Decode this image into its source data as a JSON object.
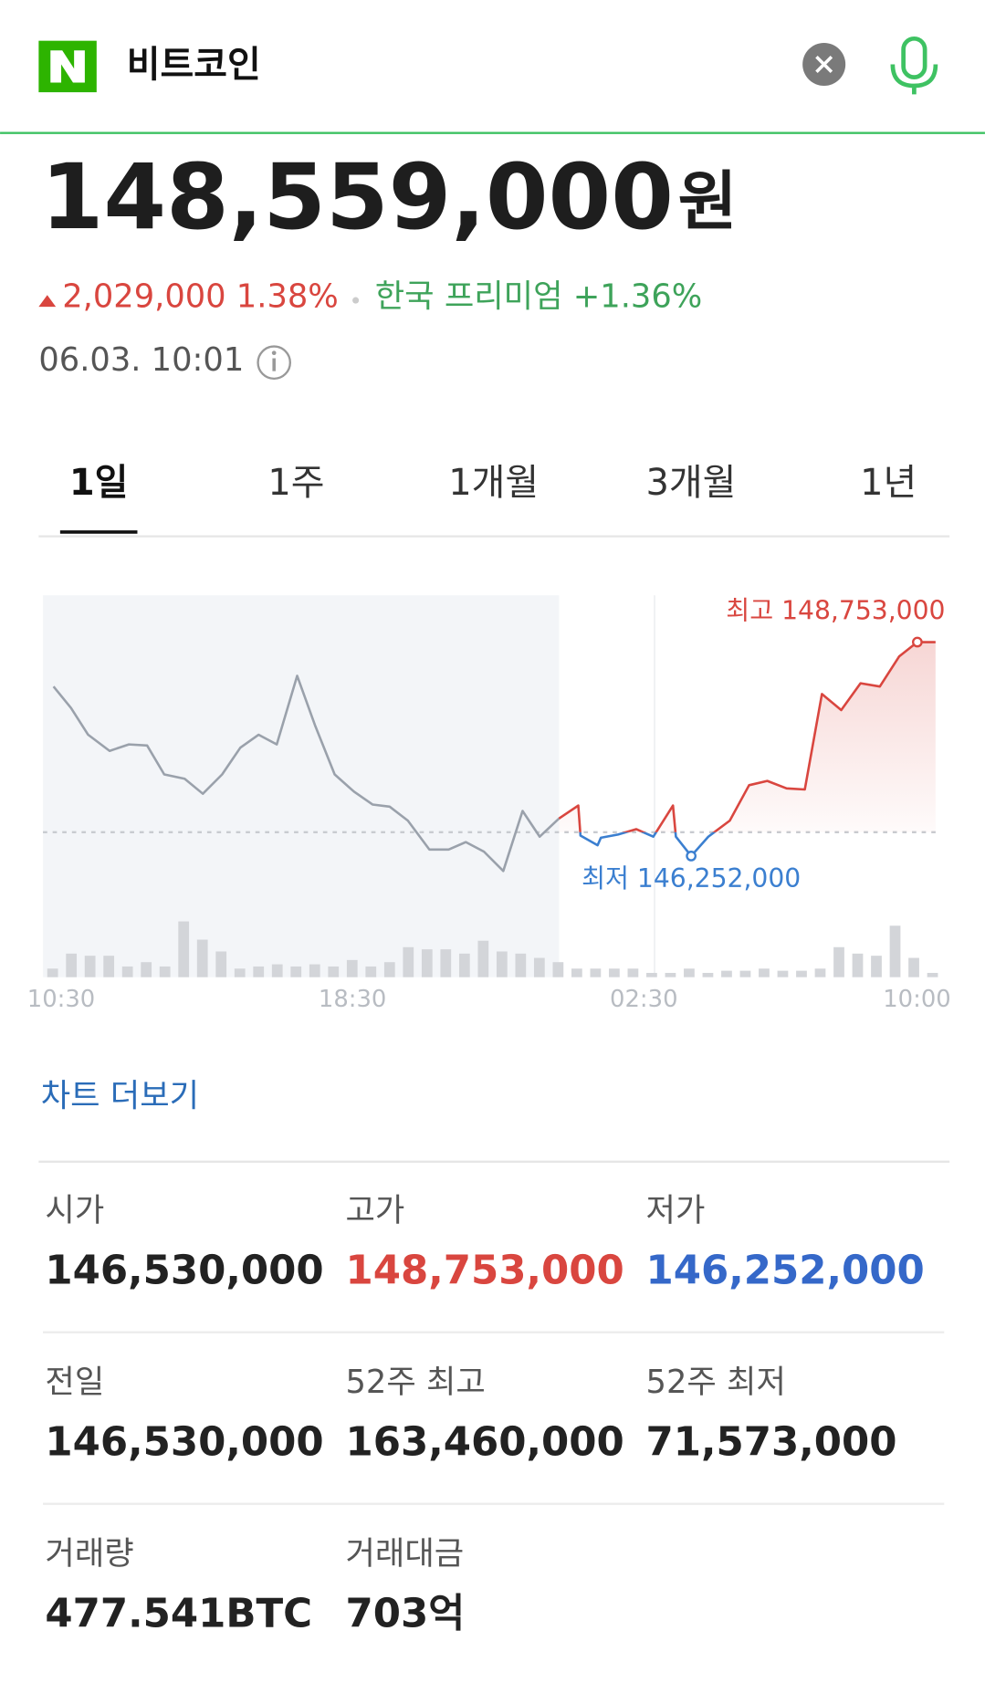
{
  "header": {
    "query": "비트코인"
  },
  "quote": {
    "price": "148,559,000",
    "unit": "원",
    "change": "2,029,000 1.38%",
    "premium": "한국 프리미엄 +1.36%",
    "time": "06.03. 10:01"
  },
  "tabs": [
    "1일",
    "1주",
    "1개월",
    "3개월",
    "1년"
  ],
  "chart_data": {
    "type": "line",
    "xlim": [
      0,
      24.6
    ],
    "ylim": [
      145500000,
      149300000
    ],
    "xticks": [
      {
        "value": 0.5,
        "label": "10:30"
      },
      {
        "value": 8.5,
        "label": "18:30"
      },
      {
        "value": 16.5,
        "label": "02:30"
      },
      {
        "value": 24,
        "label": "10:00"
      }
    ],
    "reference_line": 146530000,
    "series": [
      {
        "color": "#9aa1ab",
        "x": [
          0.29,
          0.77,
          1.24,
          1.83,
          2.36,
          2.86,
          3.33,
          3.89,
          4.39,
          4.92,
          5.42,
          5.92,
          6.42,
          6.98,
          7.48,
          8.01,
          8.54,
          9.05,
          9.52,
          10.02,
          10.61,
          11.14,
          11.61,
          12.11,
          12.64,
          13.17,
          13.64,
          14.17
        ],
        "values": [
          148234000,
          147983000,
          147670000,
          147481000,
          147557000,
          147544000,
          147206000,
          147155000,
          146980000,
          147206000,
          147519000,
          147670000,
          147557000,
          148359000,
          147770000,
          147206000,
          147005000,
          146854000,
          146829000,
          146666000,
          146328000,
          146328000,
          146415000,
          146303000,
          146077000,
          146779000,
          146478000,
          146691000
        ]
      },
      {
        "color": "#d9463f",
        "below_color": "#3b7fd0",
        "x": [
          14.17,
          14.7,
          14.76,
          15.23,
          15.32,
          15.79,
          16.29,
          16.76,
          17.3,
          17.38,
          17.8,
          18.27,
          18.86,
          19.39,
          19.89,
          20.42,
          20.92,
          21.39,
          21.92,
          22.45,
          22.98,
          23.51,
          24.01,
          24.51
        ],
        "values": [
          146691000,
          146842000,
          146491000,
          146378000,
          146466000,
          146503000,
          146566000,
          146478000,
          146842000,
          146478000,
          146252000,
          146478000,
          146666000,
          147080000,
          147130000,
          147043000,
          147030000,
          148146000,
          147958000,
          148272000,
          148234000,
          148585000,
          148753000,
          148753000
        ]
      }
    ],
    "annotations": [
      {
        "text": "최고 148,753,000",
        "x": 24.01,
        "y": 148753000,
        "color": "#d9463f"
      },
      {
        "text": "최저 146,252,000",
        "x": 17.8,
        "y": 146252000,
        "color": "#3b7fd0"
      }
    ],
    "volume": {
      "color": "#d3d5d9",
      "ylim": [
        0,
        60
      ],
      "values": [
        8,
        22,
        20,
        20,
        10,
        14,
        10,
        52,
        35,
        24,
        8,
        10,
        12,
        10,
        12,
        10,
        16,
        10,
        14,
        28,
        26,
        26,
        22,
        34,
        24,
        22,
        18,
        14,
        8,
        8,
        8,
        8,
        4,
        4,
        8,
        4,
        6,
        6,
        8,
        6,
        6,
        8,
        28,
        22,
        20,
        48,
        18,
        4
      ]
    }
  },
  "more_link": "차트 더보기",
  "stats": [
    {
      "label": "시가",
      "value": "146,530,000",
      "color": "#222222"
    },
    {
      "label": "고가",
      "value": "148,753,000",
      "color": "#d9463f"
    },
    {
      "label": "저가",
      "value": "146,252,000",
      "color": "#3568c9"
    },
    {
      "label": "전일",
      "value": "146,530,000",
      "color": "#222222"
    },
    {
      "label": "52주 최고",
      "value": "163,460,000",
      "color": "#222222"
    },
    {
      "label": "52주 최저",
      "value": "71,573,000",
      "color": "#222222"
    },
    {
      "label": "거래량",
      "value": "477.541BTC",
      "color": "#222222"
    },
    {
      "label": "거래대금",
      "value": "703억",
      "color": "#222222"
    }
  ]
}
